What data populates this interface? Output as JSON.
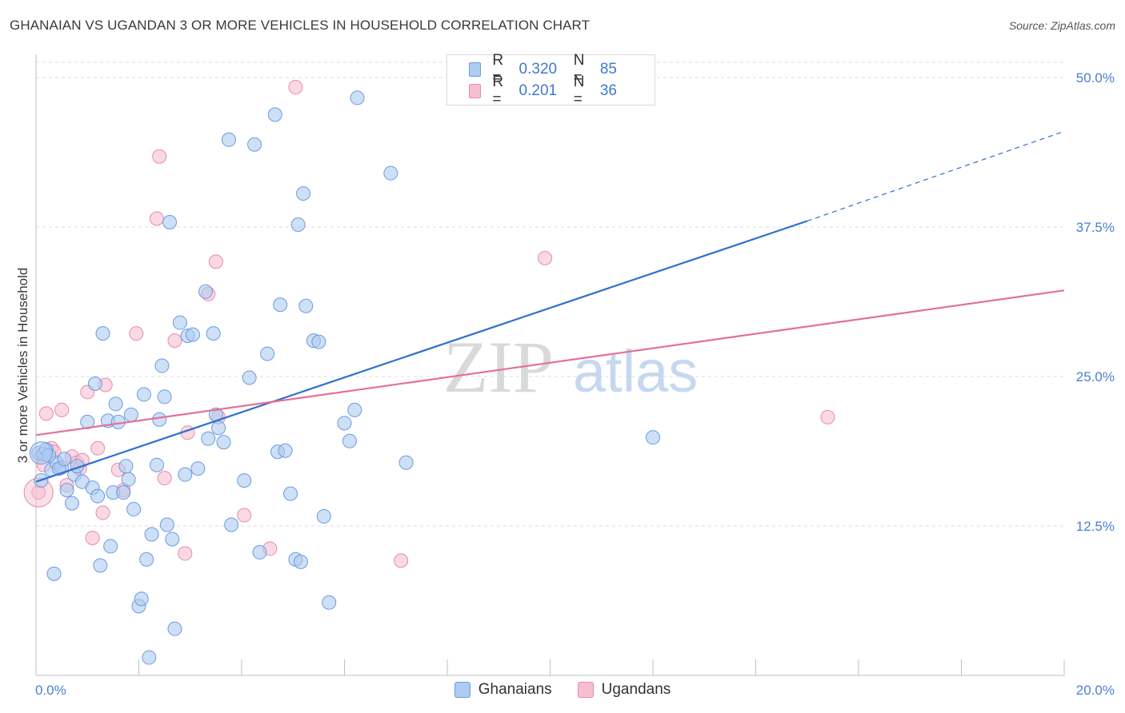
{
  "title": "GHANAIAN VS UGANDAN 3 OR MORE VEHICLES IN HOUSEHOLD CORRELATION CHART",
  "source": "Source: ZipAtlas.com",
  "watermark": {
    "zip": "ZIP",
    "atlas": "atlas"
  },
  "legend": {
    "rows": [
      {
        "r_label": "R =",
        "r_value": "0.320",
        "n_label": "N =",
        "n_value": "85"
      },
      {
        "r_label": "R =",
        "r_value": "0.201",
        "n_label": "N =",
        "n_value": "36"
      }
    ]
  },
  "bottom_legend": {
    "series1": "Ghanaians",
    "series2": "Ugandans"
  },
  "colors": {
    "blue_fill": "#aecbf0",
    "blue_stroke": "#6b9be0",
    "blue_line": "#2f6fd0",
    "pink_fill": "#f6bfd1",
    "pink_stroke": "#e98aab",
    "pink_line": "#e46f98",
    "axis_label": "#4a7fd0",
    "grid": "#dcdcdc"
  },
  "chart_data": {
    "type": "scatter",
    "title": "GHANAIAN VS UGANDAN 3 OR MORE VEHICLES IN HOUSEHOLD CORRELATION CHART",
    "xlabel": "",
    "ylabel": "3 or more Vehicles in Household",
    "xlim": [
      0,
      20
    ],
    "ylim": [
      0,
      50
    ],
    "x_tick_labels": [
      "0.0%",
      "20.0%"
    ],
    "y_ticks": [
      12.5,
      25.0,
      37.5,
      50.0
    ],
    "y_tick_labels": [
      "12.5%",
      "25.0%",
      "37.5%",
      "50.0%"
    ],
    "grid": true,
    "legend_placement": "top-center",
    "series": [
      {
        "name": "Ghanaians",
        "color": "#aecbf0",
        "R": 0.32,
        "N": 85,
        "trend": {
          "x": [
            0,
            15
          ],
          "y": [
            16.2,
            38.0
          ],
          "dashed_extension_to": [
            20,
            45.5
          ]
        },
        "points": [
          [
            0.05,
            18.6
          ],
          [
            0.1,
            16.3
          ],
          [
            0.15,
            18.5
          ],
          [
            0.2,
            18.9
          ],
          [
            0.3,
            17.2
          ],
          [
            0.35,
            8.5
          ],
          [
            0.4,
            17.8
          ],
          [
            0.5,
            17.4
          ],
          [
            0.6,
            15.5
          ],
          [
            0.7,
            14.4
          ],
          [
            0.75,
            16.8
          ],
          [
            0.8,
            17.5
          ],
          [
            0.9,
            16.2
          ],
          [
            1.0,
            21.2
          ],
          [
            1.1,
            15.7
          ],
          [
            1.15,
            24.4
          ],
          [
            1.2,
            15.0
          ],
          [
            1.25,
            9.2
          ],
          [
            1.3,
            28.6
          ],
          [
            1.4,
            21.3
          ],
          [
            1.45,
            10.8
          ],
          [
            1.5,
            15.3
          ],
          [
            1.55,
            22.7
          ],
          [
            1.6,
            21.2
          ],
          [
            1.7,
            15.3
          ],
          [
            1.75,
            17.5
          ],
          [
            1.8,
            16.4
          ],
          [
            1.85,
            21.8
          ],
          [
            1.9,
            13.9
          ],
          [
            2.0,
            5.8
          ],
          [
            2.05,
            6.4
          ],
          [
            2.1,
            23.5
          ],
          [
            2.15,
            9.7
          ],
          [
            2.2,
            1.5
          ],
          [
            2.25,
            11.8
          ],
          [
            2.35,
            17.6
          ],
          [
            2.4,
            21.4
          ],
          [
            2.45,
            25.9
          ],
          [
            2.5,
            23.3
          ],
          [
            2.55,
            12.6
          ],
          [
            2.6,
            37.9
          ],
          [
            2.65,
            11.4
          ],
          [
            2.7,
            3.9
          ],
          [
            2.8,
            29.5
          ],
          [
            2.9,
            16.8
          ],
          [
            2.95,
            28.4
          ],
          [
            3.05,
            28.5
          ],
          [
            3.15,
            17.3
          ],
          [
            3.3,
            32.1
          ],
          [
            3.35,
            19.8
          ],
          [
            3.45,
            28.6
          ],
          [
            3.5,
            21.8
          ],
          [
            3.55,
            20.7
          ],
          [
            3.65,
            19.5
          ],
          [
            3.75,
            44.8
          ],
          [
            3.8,
            12.6
          ],
          [
            4.05,
            16.3
          ],
          [
            4.15,
            24.9
          ],
          [
            4.25,
            44.4
          ],
          [
            4.35,
            10.3
          ],
          [
            4.5,
            26.9
          ],
          [
            4.65,
            46.9
          ],
          [
            4.7,
            18.7
          ],
          [
            4.75,
            31.0
          ],
          [
            4.85,
            18.8
          ],
          [
            4.95,
            15.2
          ],
          [
            5.05,
            9.7
          ],
          [
            5.1,
            37.7
          ],
          [
            5.15,
            9.5
          ],
          [
            5.2,
            40.3
          ],
          [
            5.25,
            30.9
          ],
          [
            5.4,
            28.0
          ],
          [
            5.5,
            27.9
          ],
          [
            5.6,
            13.3
          ],
          [
            5.7,
            6.1
          ],
          [
            6.0,
            21.1
          ],
          [
            6.1,
            19.6
          ],
          [
            6.2,
            22.2
          ],
          [
            6.25,
            48.3
          ],
          [
            6.9,
            42.0
          ],
          [
            7.2,
            17.8
          ],
          [
            12.0,
            19.9
          ],
          [
            0.25,
            18.4
          ],
          [
            0.45,
            17.3
          ],
          [
            0.55,
            18.1
          ]
        ]
      },
      {
        "name": "Ugandans",
        "color": "#f6bfd1",
        "R": 0.201,
        "N": 36,
        "trend": {
          "x": [
            0,
            20
          ],
          "y": [
            20.1,
            32.2
          ]
        },
        "points": [
          [
            0.05,
            15.3
          ],
          [
            0.1,
            18.4
          ],
          [
            0.2,
            21.9
          ],
          [
            0.3,
            19.0
          ],
          [
            0.35,
            18.7
          ],
          [
            0.45,
            17.3
          ],
          [
            0.5,
            22.2
          ],
          [
            0.6,
            15.9
          ],
          [
            0.7,
            18.3
          ],
          [
            0.8,
            17.8
          ],
          [
            0.85,
            17.3
          ],
          [
            0.9,
            18.0
          ],
          [
            1.0,
            23.7
          ],
          [
            1.1,
            11.5
          ],
          [
            1.2,
            19.0
          ],
          [
            1.3,
            13.6
          ],
          [
            1.35,
            24.3
          ],
          [
            1.6,
            17.2
          ],
          [
            1.7,
            15.5
          ],
          [
            1.95,
            28.6
          ],
          [
            2.35,
            38.2
          ],
          [
            2.4,
            43.4
          ],
          [
            2.5,
            16.5
          ],
          [
            2.7,
            28.0
          ],
          [
            2.9,
            10.2
          ],
          [
            2.95,
            20.3
          ],
          [
            3.35,
            31.9
          ],
          [
            3.5,
            34.6
          ],
          [
            3.55,
            21.6
          ],
          [
            4.05,
            13.4
          ],
          [
            4.55,
            10.6
          ],
          [
            5.05,
            49.2
          ],
          [
            7.1,
            9.6
          ],
          [
            9.9,
            34.9
          ],
          [
            15.4,
            21.6
          ],
          [
            0.15,
            17.6
          ]
        ]
      }
    ]
  }
}
